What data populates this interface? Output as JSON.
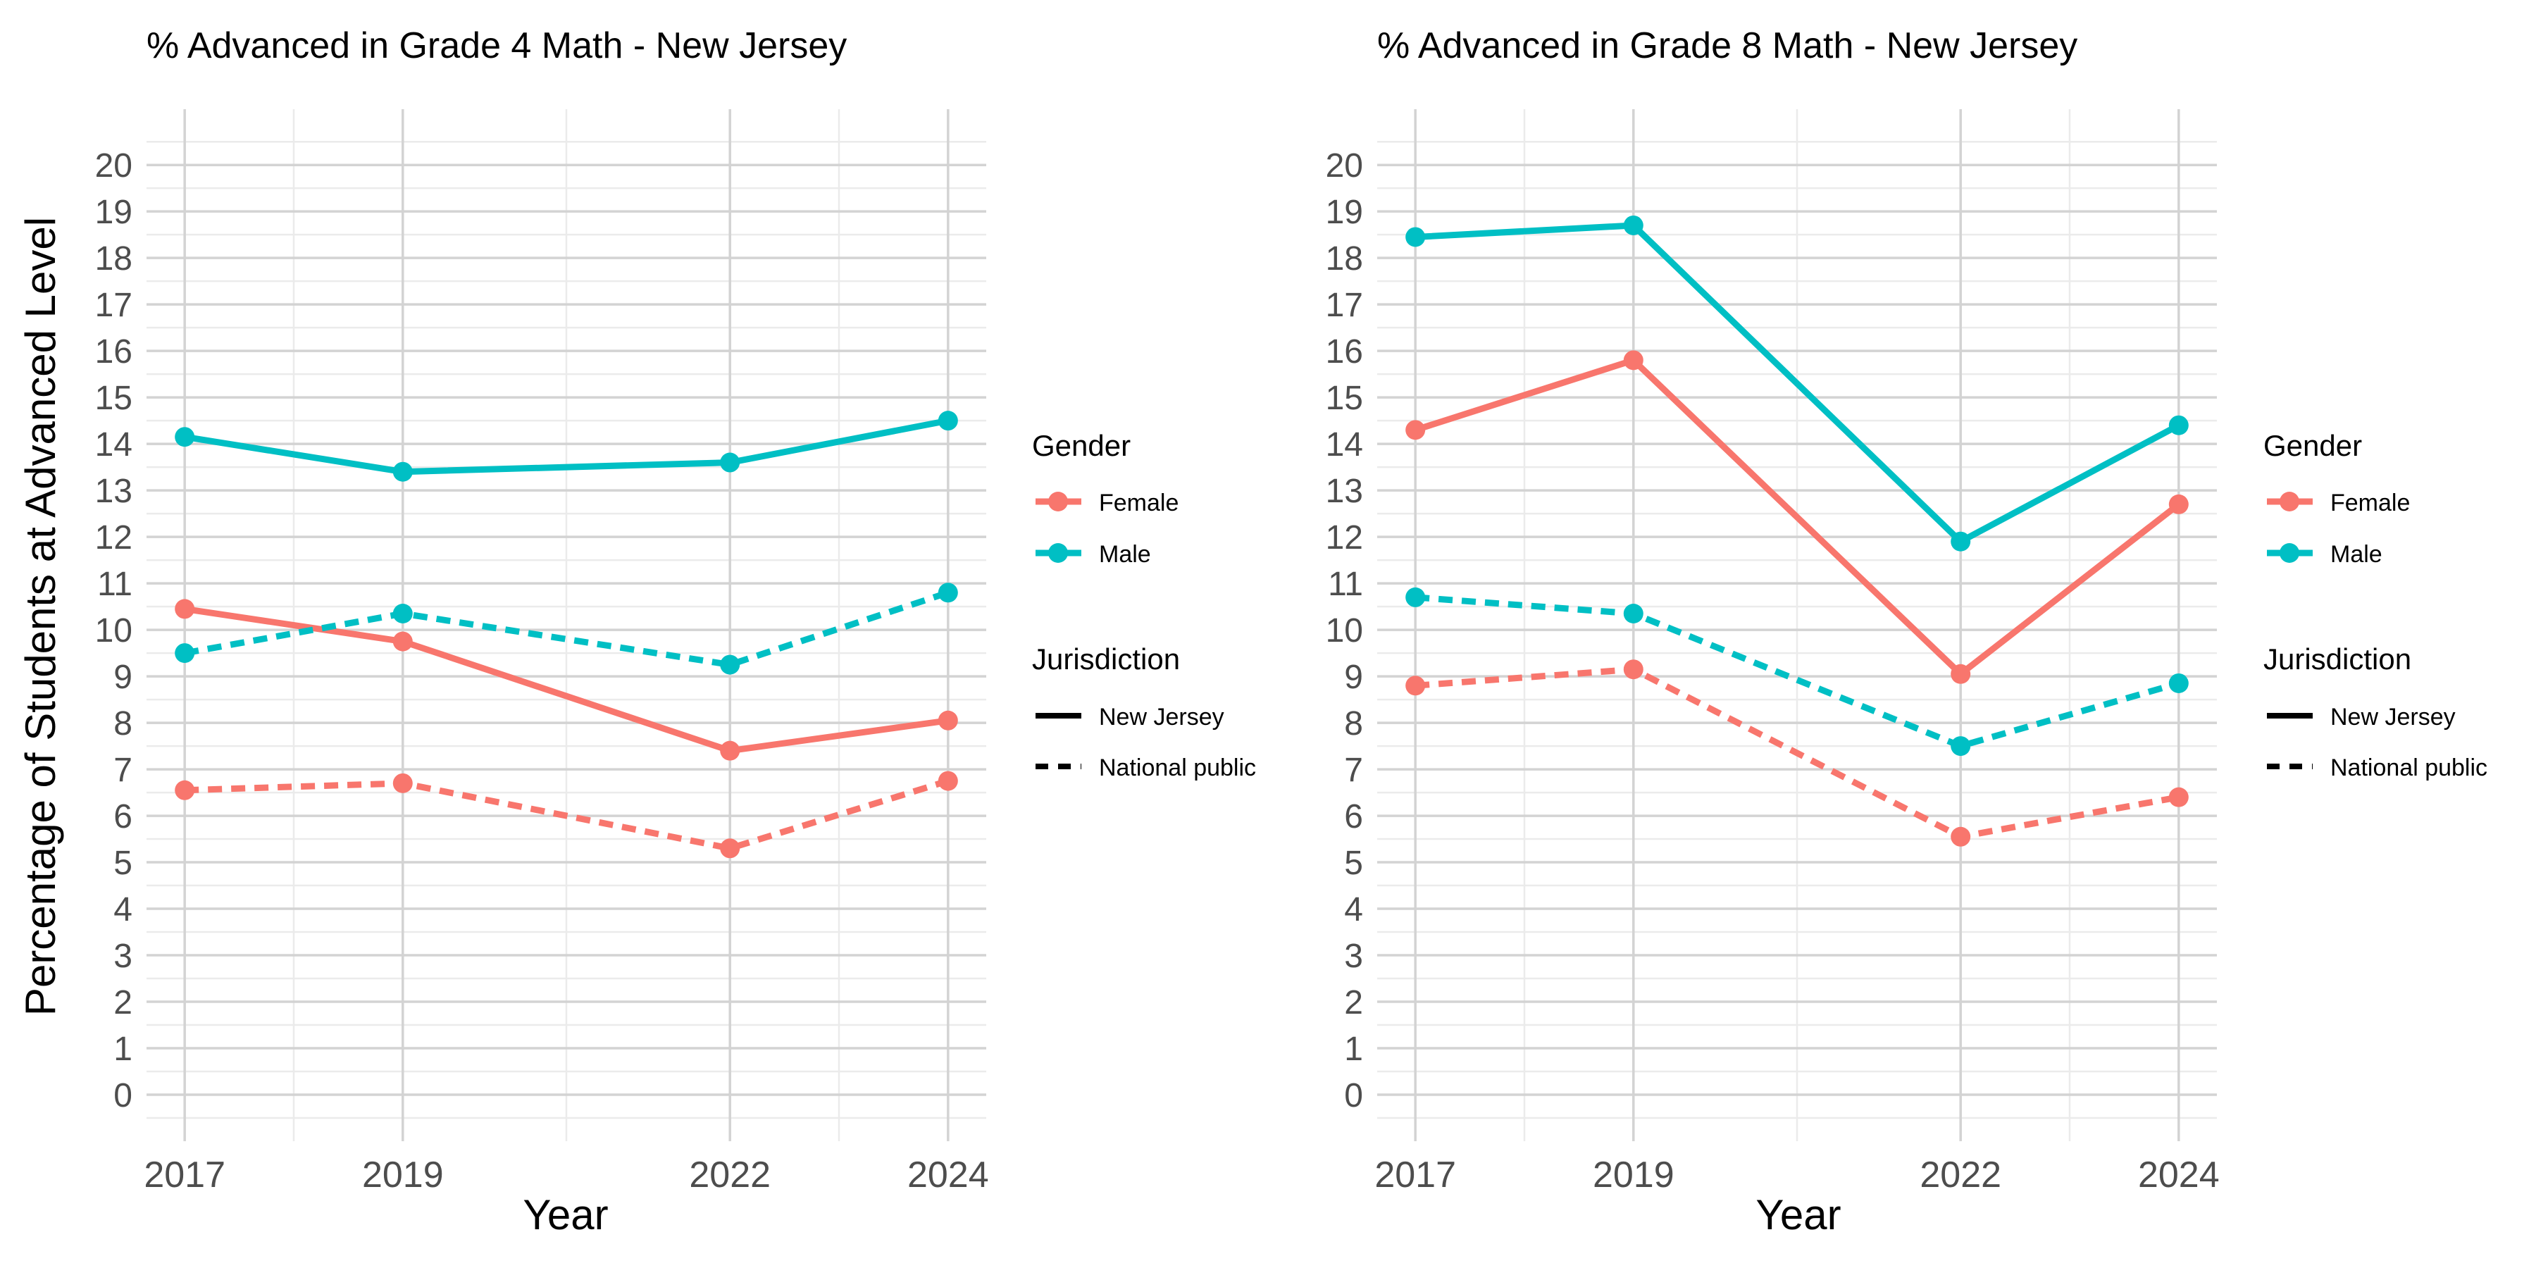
{
  "figure": {
    "ylabel": "Percentage of Students at Advanced Level"
  },
  "legend": {
    "gender_title": "Gender",
    "gender_items": [
      "Female",
      "Male"
    ],
    "jurisdiction_title": "Jurisdiction",
    "jurisdiction_items": [
      "New Jersey",
      "National public"
    ]
  },
  "colors": {
    "Female": "#F8766D",
    "Male": "#00BFC4",
    "grid_major": "#d3d3d3",
    "grid_minor": "#ebebeb",
    "text": "#000000",
    "tick_text": "#4d4d4d"
  },
  "chart_data": [
    {
      "type": "line",
      "title": "% Advanced in Grade 4 Math - New Jersey",
      "xlabel": "Year",
      "ylabel": "Percentage of Students at Advanced Level",
      "x": [
        2017,
        2019,
        2022,
        2024
      ],
      "xlim": [
        2016.65,
        2024.35
      ],
      "ylim": [
        -1,
        21.2
      ],
      "yticks": [
        0,
        1,
        2,
        3,
        4,
        5,
        6,
        7,
        8,
        9,
        10,
        11,
        12,
        13,
        14,
        15,
        16,
        17,
        18,
        19,
        20
      ],
      "grid": true,
      "legend_position": "right",
      "series": [
        {
          "name": "Female",
          "gender": "Female",
          "jurisdiction": "New Jersey",
          "values": [
            10.45,
            9.75,
            7.4,
            8.05
          ]
        },
        {
          "name": "Male",
          "gender": "Male",
          "jurisdiction": "New Jersey",
          "values": [
            14.15,
            13.4,
            13.6,
            14.5
          ]
        },
        {
          "name": "Female",
          "gender": "Female",
          "jurisdiction": "National public",
          "values": [
            6.55,
            6.7,
            5.3,
            6.75
          ]
        },
        {
          "name": "Male",
          "gender": "Male",
          "jurisdiction": "National public",
          "values": [
            9.5,
            10.35,
            9.25,
            10.8
          ]
        }
      ]
    },
    {
      "type": "line",
      "title": "% Advanced in Grade 8 Math - New Jersey",
      "xlabel": "Year",
      "ylabel": "",
      "x": [
        2017,
        2019,
        2022,
        2024
      ],
      "xlim": [
        2016.65,
        2024.35
      ],
      "ylim": [
        -1,
        21.2
      ],
      "yticks": [
        0,
        1,
        2,
        3,
        4,
        5,
        6,
        7,
        8,
        9,
        10,
        11,
        12,
        13,
        14,
        15,
        16,
        17,
        18,
        19,
        20
      ],
      "grid": true,
      "legend_position": "right",
      "series": [
        {
          "name": "Female",
          "gender": "Female",
          "jurisdiction": "New Jersey",
          "values": [
            14.3,
            15.8,
            9.05,
            12.7
          ]
        },
        {
          "name": "Male",
          "gender": "Male",
          "jurisdiction": "New Jersey",
          "values": [
            18.45,
            18.7,
            11.9,
            14.4
          ]
        },
        {
          "name": "Female",
          "gender": "Female",
          "jurisdiction": "National public",
          "values": [
            8.8,
            9.15,
            5.55,
            6.4
          ]
        },
        {
          "name": "Male",
          "gender": "Male",
          "jurisdiction": "National public",
          "values": [
            10.7,
            10.35,
            7.5,
            8.85
          ]
        }
      ]
    }
  ]
}
